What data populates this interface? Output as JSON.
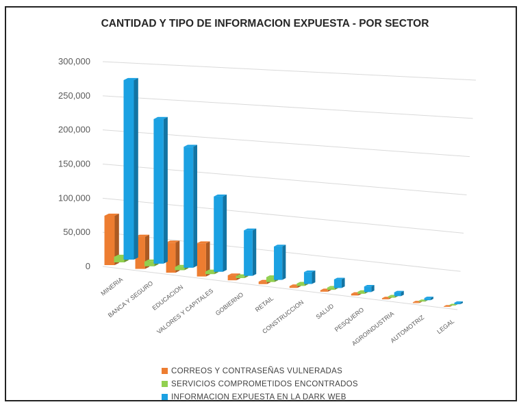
{
  "chart_data": {
    "type": "bar",
    "title": "CANTIDAD Y TIPO DE INFORMACION EXPUESTA - POR SECTOR",
    "xlabel": "",
    "ylabel": "",
    "ylim": [
      0,
      300000
    ],
    "yticks": [
      0,
      50000,
      100000,
      150000,
      200000,
      250000,
      300000
    ],
    "ytick_labels": [
      "0",
      "50,000",
      "100,000",
      "150,000",
      "200,000",
      "250,000",
      "300,000"
    ],
    "categories": [
      "MINERIA",
      "BANCA Y SEGURO",
      "EDUCACION",
      "VALORES Y CAPITALES",
      "GOBIERNO",
      "RETAIL",
      "CONSTRUCCION",
      "SALUD",
      "PESQUERO",
      "AGROINDUSTRIA",
      "AUTOMOTRIZ",
      "LEGAL"
    ],
    "series": [
      {
        "name": "CORREOS Y CONTRASEÑAS VULNERADAS",
        "color": "#ed7d31",
        "values": [
          72000,
          48000,
          46000,
          52000,
          8000,
          4000,
          3000,
          2500,
          3000,
          2000,
          1500,
          1000
        ]
      },
      {
        "name": "SERVICIOS COMPROMETIDOS ENCONTRADOS",
        "color": "#92d050",
        "values": [
          8000,
          7000,
          5000,
          4000,
          3000,
          8000,
          4000,
          4000,
          3500,
          2500,
          1500,
          1000
        ]
      },
      {
        "name": "INFORMACION EXPUESTA EN LA DARK WEB",
        "color": "#1ba1e2",
        "values": [
          262000,
          216000,
          185000,
          118000,
          73000,
          55000,
          20000,
          15000,
          10000,
          7000,
          4000,
          3000
        ]
      }
    ],
    "legend_position": "bottom",
    "grid": true
  }
}
